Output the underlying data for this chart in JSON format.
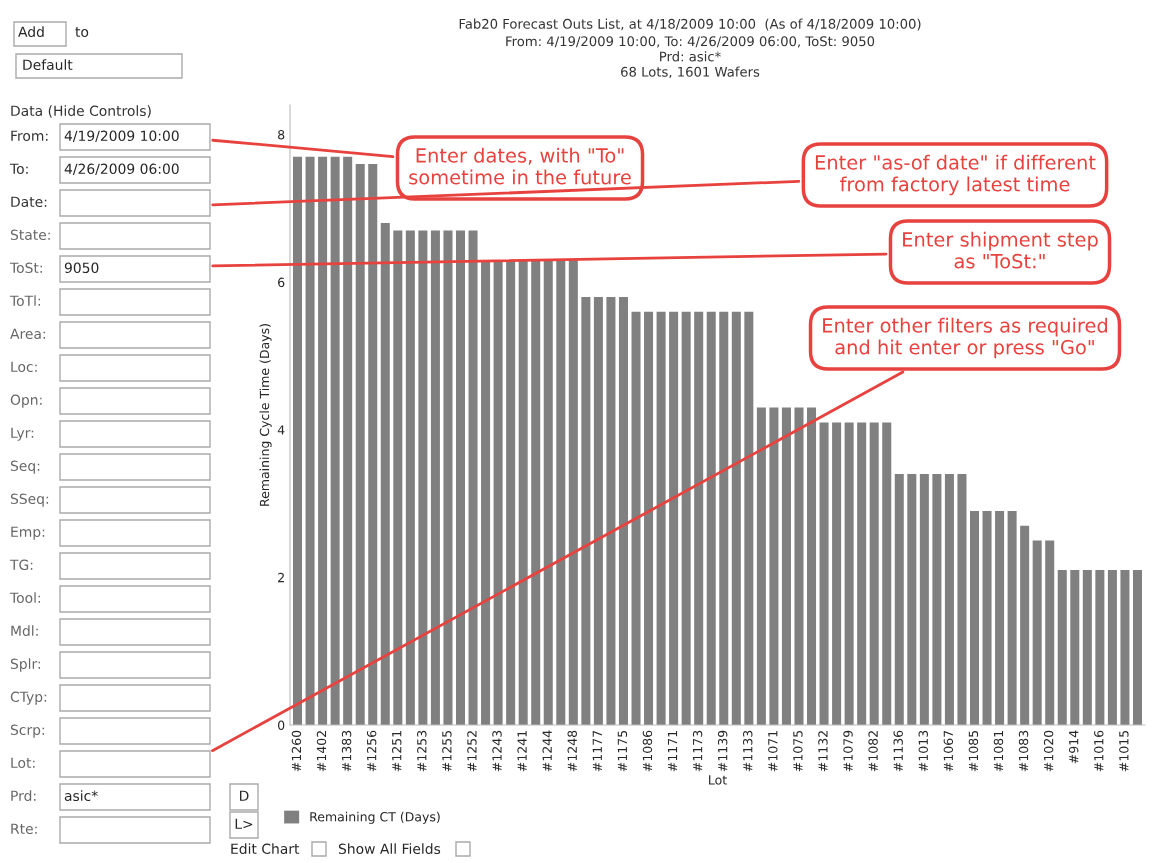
{
  "chart_data": {
    "type": "bar",
    "title": "Fab20 Forecast Outs List, at 4/18/2009 10:00  (As of 4/18/2009 10:00)",
    "subtitle": "From: 4/19/2009 10:00, To: 4/26/2009 06:00, ToSt: 9050\nPrd: asic*\n68 Lots, 1601 Wafers",
    "xlabel": "Lot",
    "ylabel": "Remaining Cycle Time (Days)",
    "categories": [
      "#1260",
      null,
      "#1402",
      null,
      "#1383",
      null,
      "#1256",
      null,
      "#1251",
      null,
      "#1253",
      null,
      "#1255",
      null,
      "#1252",
      null,
      "#1243",
      null,
      "#1241",
      null,
      "#1244",
      null,
      "#1248",
      null,
      "#1177",
      null,
      "#1175",
      null,
      "#1086",
      null,
      "#1171",
      null,
      "#1173",
      null,
      "#1139",
      null,
      "#1133",
      null,
      "#1071",
      null,
      "#1075",
      null,
      "#1132",
      null,
      "#1079",
      null,
      "#1082",
      null,
      "#1136",
      null,
      "#1013",
      null,
      "#1067",
      null,
      "#1085",
      null,
      "#1081",
      null,
      "#1083",
      null,
      "#1020",
      null,
      "#914",
      null,
      "#1016",
      null,
      "#1015",
      null
    ],
    "series": [
      {
        "name": "Remaining CT (Days)",
        "color": "#808080",
        "values": [
          7.7,
          7.7,
          7.7,
          7.7,
          7.7,
          7.6,
          7.6,
          6.8,
          6.7,
          6.7,
          6.7,
          6.7,
          6.7,
          6.7,
          6.7,
          6.3,
          6.3,
          6.3,
          6.3,
          6.3,
          6.3,
          6.3,
          6.3,
          5.8,
          5.8,
          5.8,
          5.8,
          5.6,
          5.6,
          5.6,
          5.6,
          5.6,
          5.6,
          5.6,
          5.6,
          5.6,
          5.6,
          4.3,
          4.3,
          4.3,
          4.3,
          4.3,
          4.1,
          4.1,
          4.1,
          4.1,
          4.1,
          4.1,
          3.4,
          3.4,
          3.4,
          3.4,
          3.4,
          3.4,
          2.9,
          2.9,
          2.9,
          2.9,
          2.7,
          2.5,
          2.5,
          2.1,
          2.1,
          2.1,
          2.1,
          2.1,
          2.1,
          2.1
        ]
      }
    ],
    "ylim": [
      0,
      8.4
    ],
    "yticks": [
      0,
      2,
      4,
      6,
      8
    ],
    "grid": false,
    "legend": "bottom left",
    "annotations": [
      "Enter dates, with \"To\"\nsometime in the future",
      "Enter \"as-of date\" if different\nfrom factory latest time",
      "Enter shipment step\nas \"ToSt:\"",
      "Enter other filters as required\nand hit enter or press \"Go\"",
      "Add",
      "to",
      "Default",
      "Data (Hide Controls)",
      "From:",
      "To:",
      "Date:",
      "State:",
      "ToSt:",
      "ToTl:",
      "Area:",
      "Loc:",
      "Opn:",
      "Lyr:",
      "Seq:",
      "SSeq:",
      "Emp:",
      "TG:",
      "Tool:",
      "Mdl:",
      "Splr:",
      "CTyp:",
      "Scrp:",
      "Lot:",
      "Prd:",
      "Rte:",
      "4/19/2009 10:00",
      "4/26/2009 06:00",
      "9050",
      "asic*",
      "D",
      "L>",
      "Edit Chart",
      "Show All Fields"
    ]
  }
}
